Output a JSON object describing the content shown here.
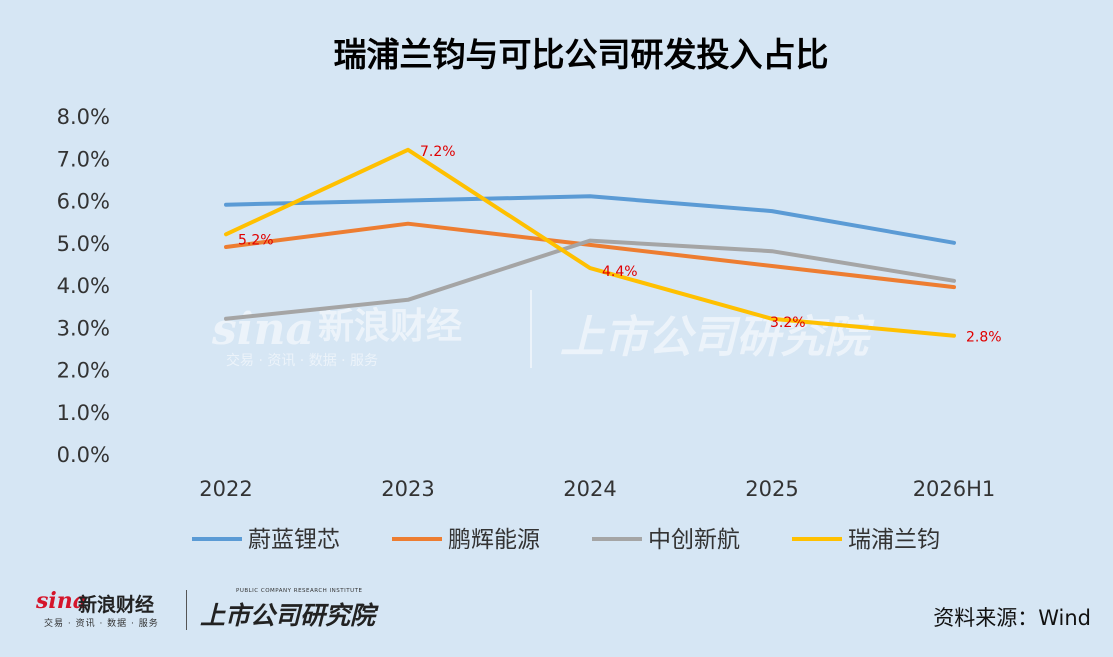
{
  "chart_data": {
    "type": "line",
    "title": "瑞浦兰钧与可比公司研发投入占比",
    "categories": [
      "2022",
      "2023",
      "2024",
      "2025",
      "2026H1"
    ],
    "yticks": [
      "0.0%",
      "1.0%",
      "2.0%",
      "3.0%",
      "4.0%",
      "5.0%",
      "6.0%",
      "7.0%",
      "8.0%"
    ],
    "ylim": [
      0,
      8
    ],
    "legend_position": "bottom",
    "series": [
      {
        "name": "蔚蓝锂芯",
        "color": "#5b9bd5",
        "values": [
          5.9,
          6.0,
          6.1,
          5.75,
          5.0
        ]
      },
      {
        "name": "鹏辉能源",
        "color": "#ed7d31",
        "values": [
          4.9,
          5.45,
          4.95,
          4.45,
          3.95
        ]
      },
      {
        "name": "中创新航",
        "color": "#a5a5a5",
        "values": [
          3.2,
          3.65,
          5.05,
          4.8,
          4.1
        ]
      },
      {
        "name": "瑞浦兰钧",
        "color": "#ffc000",
        "values": [
          5.2,
          7.2,
          4.4,
          3.2,
          2.8
        ],
        "data_labels": [
          "5.2%",
          "7.2%",
          "4.4%",
          "3.2%",
          "2.8%"
        ]
      }
    ]
  },
  "watermark": {
    "sina_brand": "sina",
    "sina_name": "新浪财经",
    "sina_tagline": "交易 · 资讯 · 数据 · 服务",
    "research_name": "上市公司研究院"
  },
  "footer": {
    "sina_brand": "sina",
    "sina_name": "新浪财经",
    "sina_tagline": "交易 · 资讯 · 数据 · 服务",
    "research_en": "PUBLIC COMPANY RESEARCH INSTITUTE",
    "research_name": "上市公司研究院",
    "source": "资料来源：Wind"
  }
}
